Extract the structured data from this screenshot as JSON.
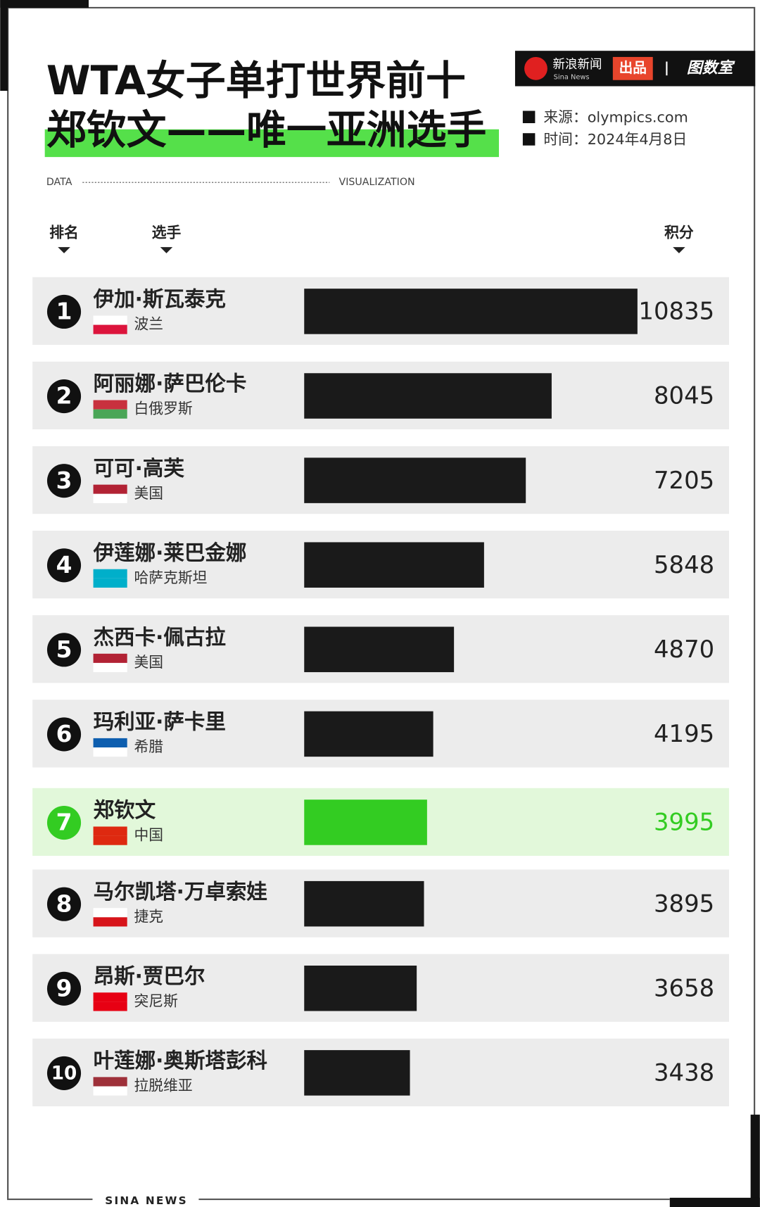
{
  "header": {
    "title_line1": "WTA女子单打世界前十",
    "title_line2": "郑钦文——唯一亚洲选手",
    "brand": "新浪新闻",
    "brand_en": "Sina News",
    "brand_tag": "出品",
    "brand2": "图数室",
    "source": "来源：olympics.com",
    "time": "时间：2024年4月8日",
    "data_label": "DATA",
    "viz_label": "VISUALIZATION"
  },
  "chart_data": {
    "type": "bar",
    "orientation": "horizontal",
    "column_headers": [
      "排名",
      "选手",
      "积分"
    ],
    "ranks": [
      1,
      2,
      3,
      4,
      5,
      6,
      7,
      8,
      9,
      10
    ],
    "categories": [
      "伊加·斯瓦泰克",
      "阿丽娜·萨巴伦卡",
      "可可·高芙",
      "伊莲娜·莱巴金娜",
      "杰西卡·佩古拉",
      "玛利亚·萨卡里",
      "郑钦文",
      "马尔凯塔·万卓索娃",
      "昂斯·贾巴尔",
      "叶莲娜·奥斯塔彭科"
    ],
    "countries": [
      "波兰",
      "白俄罗斯",
      "美国",
      "哈萨克斯坦",
      "美国",
      "希腊",
      "中国",
      "捷克",
      "突尼斯",
      "拉脱维亚"
    ],
    "values": [
      10835,
      8045,
      7205,
      5848,
      4870,
      4195,
      3995,
      3895,
      3658,
      3438
    ],
    "colors": [
      "#1a1a1a",
      "#1a1a1a",
      "#1a1a1a",
      "#1a1a1a",
      "#1a1a1a",
      "#1a1a1a",
      "#33cc22",
      "#1a1a1a",
      "#1a1a1a",
      "#1a1a1a"
    ]
  },
  "footer": "SINA NEWS"
}
